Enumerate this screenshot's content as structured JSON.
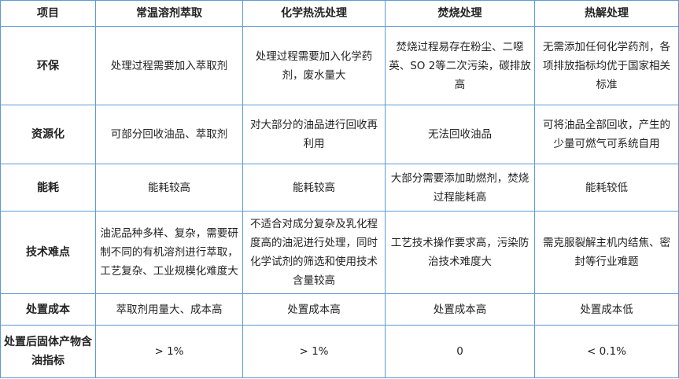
{
  "table": {
    "headers": [
      "项目",
      "常温溶剂萃取",
      "化学热洗处理",
      "焚烧处理",
      "热解处理"
    ],
    "rows": [
      {
        "label": "环保",
        "cells": [
          "处理过程需要加入萃取剂",
          "处理过程需要加入化学药剂，废水量大",
          "焚烧过程易存在粉尘、二噁英、SO 2等二次污染，碳排放高",
          "无需添加任何化学药剂，各项排放指标均优于国家相关标准"
        ]
      },
      {
        "label": "资源化",
        "cells": [
          "可部分回收油品、萃取剂",
          "对大部分的油品进行回收再利用",
          "无法回收油品",
          "可将油品全部回收，产生的少量可燃气可系统自用"
        ]
      },
      {
        "label": "能耗",
        "cells": [
          "能耗较高",
          "能耗较高",
          "大部分需要添加助燃剂，焚烧过程能耗高",
          "能耗较低"
        ]
      },
      {
        "label": "技术难点",
        "cells": [
          "油泥品种多样、复杂，需要研制不同的有机溶剂进行萃取，工艺复杂、工业规模化难度大",
          "不适合对成分复杂及乳化程度高的油泥进行处理，同时化学试剂的筛选和使用技术含量较高",
          "工艺技术操作要求高，污染防治技术难度大",
          "需克服裂解主机内结焦、密封等行业难题"
        ]
      },
      {
        "label": "处置成本",
        "cells": [
          "萃取剂用量大、成本高",
          "处置成本高",
          "处置成本高",
          "处置成本低"
        ]
      },
      {
        "label": "处置后固体产物含油指标",
        "cells": [
          "> 1%",
          "> 1%",
          "0",
          "< 0.1%"
        ]
      }
    ]
  },
  "colors": {
    "border": "#5b9bd5"
  }
}
